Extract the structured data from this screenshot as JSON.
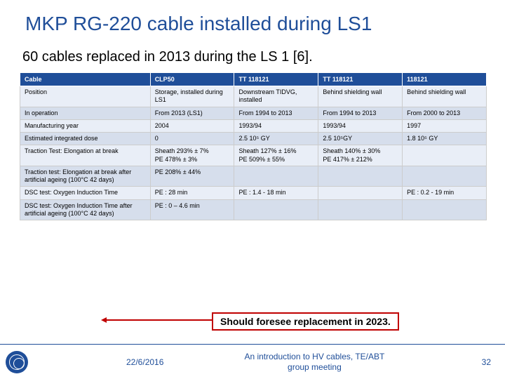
{
  "title": "MKP RG-220 cable installed during LS1",
  "subtitle": "60 cables replaced in 2013 during the LS 1 [6].",
  "table": {
    "headers": [
      "Cable",
      "CLP50",
      "TT 118121",
      "TT 118121",
      "118121"
    ],
    "rows": [
      {
        "cls": "odd",
        "c0": "Position",
        "c1": "Storage, installed during LS1",
        "c2": "Downstream TIDVG, installed",
        "c3": "Behind shielding wall",
        "c4": "Behind shielding wall"
      },
      {
        "cls": "even",
        "c0": "In operation",
        "c1": "From 2013 (LS1)",
        "c2": "From 1994 to 2013",
        "c3": "From 1994 to 2013",
        "c4": "From 2000 to 2013"
      },
      {
        "cls": "odd",
        "c0": "Manufacturing year",
        "c1": "2004",
        "c2": "1993/94",
        "c3": "1993/94",
        "c4": "1997"
      },
      {
        "cls": "even",
        "c0": "Estimated integrated dose",
        "c1": "0",
        "c2": "2.5 10⁵ GY",
        "c3": "2.5 10⁵GY",
        "c4": "1.8 10⁵ GY"
      },
      {
        "cls": "odd",
        "c0": "Traction Test: Elongation at break",
        "c1": "Sheath 293% ± 7%\nPE 478% ± 3%",
        "c2": "Sheath 127% ± 16%\nPE 509% ± 55%",
        "c3": "Sheath 140% ± 30%\nPE 417% ± 212%",
        "c4": ""
      },
      {
        "cls": "even",
        "c0": "Traction test: Elongation at break after artificial ageing (100°C 42 days)",
        "c1": "PE 208% ± 44%",
        "c2": "",
        "c3": "",
        "c4": ""
      },
      {
        "cls": "odd",
        "c0": "DSC test: Oxygen Induction Time",
        "c1": "PE : 28 min",
        "c2": "PE : 1.4 - 18 min",
        "c3": "",
        "c4": "PE : 0.2 - 19 min"
      },
      {
        "cls": "even",
        "c0": "DSC test: Oxygen Induction Time after artificial ageing (100°C 42 days)",
        "c1": "PE : 0 – 4.6 min",
        "c2": "",
        "c3": "",
        "c4": ""
      }
    ]
  },
  "callout": "Should foresee replacement in 2023.",
  "footer": {
    "date": "22/6/2016",
    "meeting": "An introduction to HV cables, TE/ABT group meeting",
    "page": "32"
  },
  "colors": {
    "brand": "#1f4e99",
    "callout_border": "#c00000",
    "row_odd": "#e9eef7",
    "row_even": "#d6deec"
  }
}
